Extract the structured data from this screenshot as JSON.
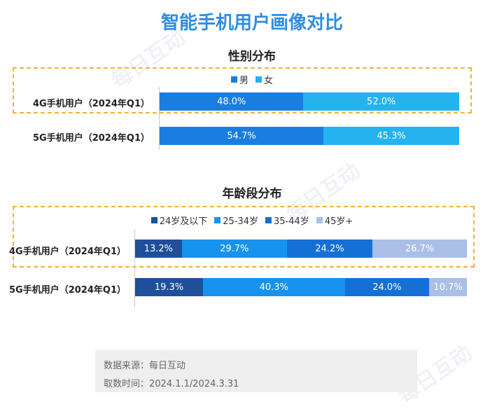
{
  "title": "智能手机用户画像对比",
  "watermark": "每日互动",
  "chart_data": [
    {
      "type": "bar",
      "stacked": true,
      "orientation": "horizontal",
      "title": "性别分布",
      "categories": [
        "4G手机用户（2024年Q1）",
        "5G手机用户（2024年Q1）"
      ],
      "series": [
        {
          "name": "男",
          "color": "#1a7ee0",
          "values": [
            48.0,
            54.7
          ],
          "labels": [
            "48.0%",
            "54.7%"
          ]
        },
        {
          "name": "女",
          "color": "#25b3f0",
          "values": [
            52.0,
            45.3
          ],
          "labels": [
            "52.0%",
            "45.3%"
          ]
        }
      ],
      "legend": "top",
      "highlight": "4G手机用户（2024年Q1）"
    },
    {
      "type": "bar",
      "stacked": true,
      "orientation": "horizontal",
      "title": "年龄段分布",
      "categories": [
        "4G手机用户（2024年Q1）",
        "5G手机用户（2024年Q1）"
      ],
      "series": [
        {
          "name": "24岁及以下",
          "color": "#1f4f9a",
          "values": [
            13.2,
            19.3
          ],
          "labels": [
            "13.2%",
            "19.3%"
          ]
        },
        {
          "name": "25-34岁",
          "color": "#1793ee",
          "values": [
            29.7,
            40.3
          ],
          "labels": [
            "29.7%",
            "40.3%"
          ]
        },
        {
          "name": "35-44岁",
          "color": "#1570d6",
          "values": [
            24.2,
            24.0
          ],
          "labels": [
            "24.2%",
            "24.0%"
          ]
        },
        {
          "name": "45岁+",
          "color": "#a9bfe6",
          "values": [
            26.7,
            10.7
          ],
          "labels": [
            "26.7%",
            "10.7%"
          ]
        }
      ],
      "legend": "top",
      "highlight": "4G手机用户（2024年Q1）"
    }
  ],
  "source": {
    "line1": "数据来源：每日互动",
    "line2": "取数时间：2024.1.1/2024.3.31"
  }
}
